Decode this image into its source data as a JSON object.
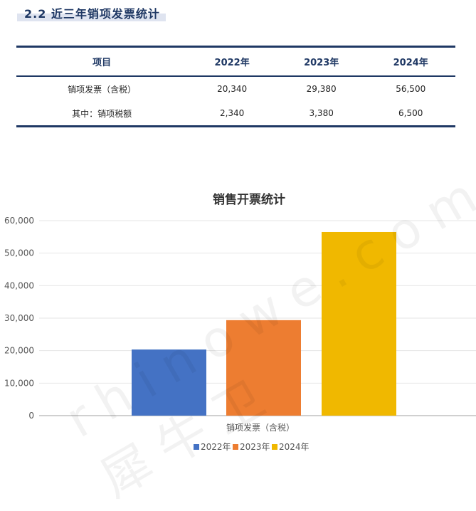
{
  "section_title": "2.2 近三年销项发票统计",
  "table": {
    "headers": [
      "项目",
      "2022年",
      "2023年",
      "2024年"
    ],
    "rows": [
      [
        "销项发票（含税）",
        "20,340",
        "29,380",
        "56,500"
      ],
      [
        "其中：销项税额",
        "2,340",
        "3,380",
        "6,500"
      ]
    ]
  },
  "watermark": "rhinowe.com 犀牛卫",
  "chart_data": {
    "type": "bar",
    "title": "销售开票统计",
    "categories": [
      "销项发票（含税）"
    ],
    "series": [
      {
        "name": "2022年",
        "values": [
          20340
        ],
        "color": "#4472c4"
      },
      {
        "name": "2023年",
        "values": [
          29380
        ],
        "color": "#ed7d31"
      },
      {
        "name": "2024年",
        "values": [
          56500
        ],
        "color": "#f0b800"
      }
    ],
    "yticks": [
      "0",
      "10,000",
      "20,000",
      "30,000",
      "40,000",
      "50,000",
      "60,000"
    ],
    "ylim": [
      0,
      60000
    ],
    "grid": true,
    "legend": "bottom"
  }
}
